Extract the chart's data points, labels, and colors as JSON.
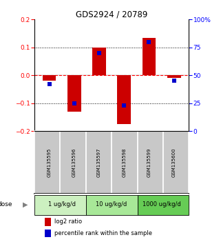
{
  "title": "GDS2924 / 20789",
  "samples": [
    "GSM135595",
    "GSM135596",
    "GSM135597",
    "GSM135598",
    "GSM135599",
    "GSM135600"
  ],
  "log2_ratio": [
    -0.02,
    -0.13,
    0.1,
    -0.175,
    0.135,
    -0.01
  ],
  "percentile_rank": [
    42,
    25,
    70,
    23,
    80,
    45
  ],
  "doses": [
    {
      "label": "1 ug/kg/d",
      "samples": [
        0,
        1
      ]
    },
    {
      "label": "10 ug/kg/d",
      "samples": [
        2,
        3
      ]
    },
    {
      "label": "1000 ug/kg/d",
      "samples": [
        4,
        5
      ]
    }
  ],
  "ylim_left": [
    -0.2,
    0.2
  ],
  "ylim_right": [
    0,
    100
  ],
  "left_ticks": [
    -0.2,
    -0.1,
    0,
    0.1,
    0.2
  ],
  "right_ticks": [
    0,
    25,
    50,
    75,
    100
  ],
  "bar_color": "#cc0000",
  "dot_color": "#0000cc",
  "sample_bg_color": "#c8c8c8",
  "dose_colors": [
    "#ccf0c0",
    "#a8e898",
    "#66cc55"
  ],
  "bar_width": 0.55,
  "dot_size": 25
}
